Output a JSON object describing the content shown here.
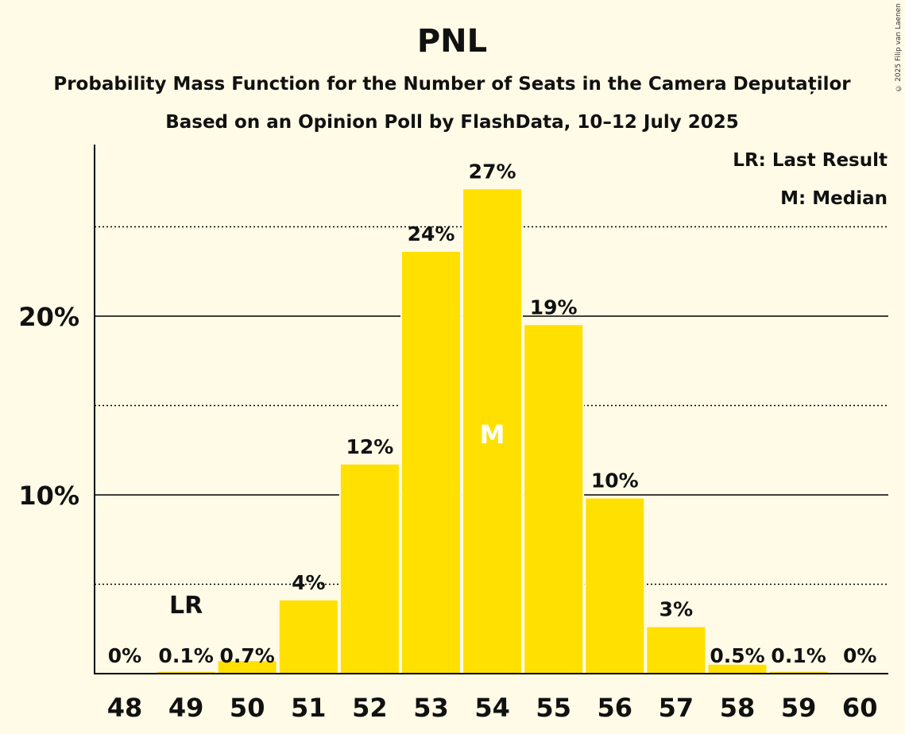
{
  "title": "PNL",
  "subtitle1": "Probability Mass Function for the Number of Seats in the Camera Deputaților",
  "subtitle2": "Based on an Opinion Poll by FlashData, 10–12 July 2025",
  "copyright": "© 2025 Filip van Laenen",
  "legend": {
    "lr": "LR: Last Result",
    "m": "M: Median"
  },
  "colors": {
    "bar": "#FFE000",
    "background": "#FFFBE6",
    "grid": "#000000"
  },
  "chart_data": {
    "type": "bar",
    "categories": [
      "48",
      "49",
      "50",
      "51",
      "52",
      "53",
      "54",
      "55",
      "56",
      "57",
      "58",
      "59",
      "60"
    ],
    "values": [
      0,
      0.1,
      0.7,
      4.1,
      11.7,
      23.6,
      27.1,
      19.5,
      9.8,
      2.6,
      0.5,
      0.1,
      0
    ],
    "labels": [
      "0%",
      "0.1%",
      "0.7%",
      "4%",
      "12%",
      "24%",
      "27%",
      "19%",
      "10%",
      "3%",
      "0.5%",
      "0.1%",
      "0%"
    ],
    "ylim": [
      0,
      29.6
    ],
    "yticks": [
      {
        "value": 10,
        "label": "10%"
      },
      {
        "value": 20,
        "label": "20%"
      }
    ],
    "minor_gridlines": [
      5,
      15,
      25
    ],
    "last_result": {
      "category": "49",
      "label": "LR"
    },
    "median": {
      "category": "54",
      "label": "M"
    },
    "legend_position": "top-right"
  }
}
